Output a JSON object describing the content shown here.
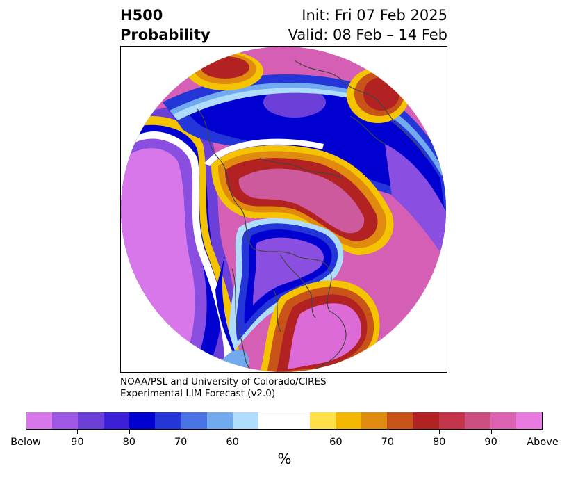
{
  "header": {
    "title_line1": "H500",
    "title_line2": "Probability",
    "init": "Init: Fri 07 Feb 2025",
    "valid": "Valid: 08 Feb – 14 Feb"
  },
  "credit": {
    "line1": "NOAA/PSL and University of Colorado/CIRES",
    "line2": "Experimental LIM Forecast (v2.0)"
  },
  "colorbar": {
    "colors": [
      "#d877ea",
      "#9f58e3",
      "#6b3fd8",
      "#3a1fd6",
      "#0000d1",
      "#2436d8",
      "#4a74e6",
      "#72aaef",
      "#aedcfa",
      "#ffffff",
      "#ffe04a",
      "#f4b800",
      "#e08a10",
      "#c9541a",
      "#b22222",
      "#c4344a",
      "#cc4f82",
      "#de62b2",
      "#e87ae2"
    ],
    "tick_labels": [
      "Below",
      "90",
      "80",
      "70",
      "60",
      "60",
      "70",
      "80",
      "90",
      "Above"
    ],
    "units": "%"
  },
  "map": {
    "projection": "north-polar-stereographic",
    "variable": "500 hPa height probability",
    "colors": {
      "outer_above": "#dc6bd8",
      "outer_above_2": "#cd5a9d",
      "red": "#b8283a",
      "orange": "#e08a10",
      "yellow": "#f4c400",
      "deep_blue": "#0000d1",
      "mid_blue": "#2436d8",
      "purple": "#8a4ee0",
      "light_blue": "#72aaef",
      "pale_blue": "#aedcfa",
      "outer_below": "#d877ea",
      "coast": "#444444"
    }
  }
}
